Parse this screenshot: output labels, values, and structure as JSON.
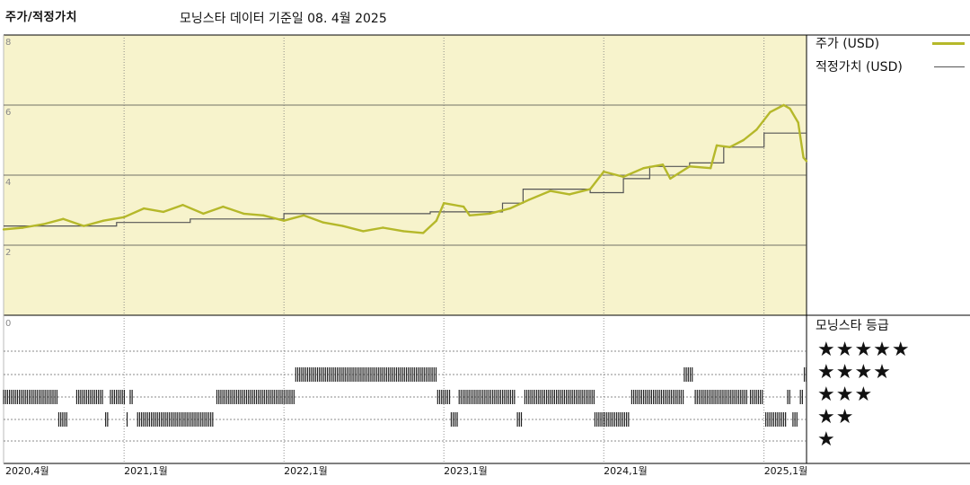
{
  "header": {
    "title": "주가/적정가치",
    "subtitle": "모닝스타 데이터 기준일 08. 4월 2025"
  },
  "legend": [
    {
      "label": "주가 (USD)",
      "color": "#b5b82a"
    },
    {
      "label": "적정가치 (USD)",
      "color": "#555555"
    }
  ],
  "rating_panel": {
    "title": "모닝스타 등급",
    "stars": [
      "★★★★★",
      "★★★★",
      "★★★",
      "★★",
      "★"
    ]
  },
  "colors": {
    "plot_bg": "#f7f3cc",
    "price": "#b5b82a",
    "fair_value": "#555555",
    "rating_bar": "#222222"
  },
  "chart_data": {
    "type": "line",
    "title": "주가/적정가치",
    "subtitle": "모닝스타 데이터 기준일 08. 4월 2025",
    "x_ticks": [
      {
        "label": "2020,4월",
        "date": "2020-04-01"
      },
      {
        "label": "2021,1월",
        "date": "2021-01-01"
      },
      {
        "label": "2022,1월",
        "date": "2022-01-01"
      },
      {
        "label": "2023,1월",
        "date": "2023-01-01"
      },
      {
        "label": "2024,1월",
        "date": "2024-01-01"
      },
      {
        "label": "2025,1월",
        "date": "2025-01-01"
      }
    ],
    "xlim": [
      "2020-04-01",
      "2025-04-08"
    ],
    "y_ticks": [
      2,
      4,
      6,
      8
    ],
    "ylim": [
      0,
      8
    ],
    "grid": true,
    "series": [
      {
        "name": "주가 (USD)",
        "points": [
          [
            "2020-04-01",
            2.45
          ],
          [
            "2020-05-15",
            2.5
          ],
          [
            "2020-07-01",
            2.6
          ],
          [
            "2020-08-15",
            2.75
          ],
          [
            "2020-10-01",
            2.55
          ],
          [
            "2020-11-15",
            2.7
          ],
          [
            "2021-01-01",
            2.8
          ],
          [
            "2021-02-15",
            3.05
          ],
          [
            "2021-04-01",
            2.95
          ],
          [
            "2021-05-15",
            3.15
          ],
          [
            "2021-07-01",
            2.9
          ],
          [
            "2021-08-15",
            3.1
          ],
          [
            "2021-10-01",
            2.9
          ],
          [
            "2021-11-15",
            2.85
          ],
          [
            "2022-01-01",
            2.7
          ],
          [
            "2022-02-15",
            2.85
          ],
          [
            "2022-04-01",
            2.65
          ],
          [
            "2022-05-15",
            2.55
          ],
          [
            "2022-07-01",
            2.4
          ],
          [
            "2022-08-15",
            2.5
          ],
          [
            "2022-10-01",
            2.4
          ],
          [
            "2022-11-15",
            2.35
          ],
          [
            "2022-12-15",
            2.7
          ],
          [
            "2023-01-01",
            3.2
          ],
          [
            "2023-02-15",
            3.1
          ],
          [
            "2023-03-01",
            2.85
          ],
          [
            "2023-04-15",
            2.9
          ],
          [
            "2023-06-01",
            3.05
          ],
          [
            "2023-07-15",
            3.3
          ],
          [
            "2023-09-01",
            3.55
          ],
          [
            "2023-10-15",
            3.45
          ],
          [
            "2023-12-01",
            3.6
          ],
          [
            "2024-01-01",
            4.1
          ],
          [
            "2024-02-15",
            3.95
          ],
          [
            "2024-04-01",
            4.2
          ],
          [
            "2024-05-15",
            4.3
          ],
          [
            "2024-06-01",
            3.9
          ],
          [
            "2024-07-15",
            4.25
          ],
          [
            "2024-09-01",
            4.2
          ],
          [
            "2024-09-15",
            4.85
          ],
          [
            "2024-10-15",
            4.8
          ],
          [
            "2024-11-15",
            5.0
          ],
          [
            "2024-12-15",
            5.3
          ],
          [
            "2025-01-15",
            5.8
          ],
          [
            "2025-02-15",
            6.0
          ],
          [
            "2025-03-01",
            5.9
          ],
          [
            "2025-03-20",
            5.5
          ],
          [
            "2025-04-01",
            4.5
          ],
          [
            "2025-04-08",
            4.4
          ]
        ]
      },
      {
        "name": "적정가치 (USD)",
        "points": [
          [
            "2020-04-01",
            2.55
          ],
          [
            "2020-12-15",
            2.55
          ],
          [
            "2020-12-15",
            2.65
          ],
          [
            "2021-06-01",
            2.65
          ],
          [
            "2021-06-01",
            2.75
          ],
          [
            "2022-01-01",
            2.75
          ],
          [
            "2022-01-01",
            2.9
          ],
          [
            "2022-12-01",
            2.9
          ],
          [
            "2022-12-01",
            2.95
          ],
          [
            "2023-05-15",
            2.95
          ],
          [
            "2023-05-15",
            3.2
          ],
          [
            "2023-07-01",
            3.2
          ],
          [
            "2023-07-01",
            3.6
          ],
          [
            "2023-12-01",
            3.6
          ],
          [
            "2023-12-01",
            3.5
          ],
          [
            "2024-02-15",
            3.5
          ],
          [
            "2024-02-15",
            3.9
          ],
          [
            "2024-04-15",
            3.9
          ],
          [
            "2024-04-15",
            4.25
          ],
          [
            "2024-07-15",
            4.25
          ],
          [
            "2024-07-15",
            4.35
          ],
          [
            "2024-10-01",
            4.35
          ],
          [
            "2024-10-01",
            4.8
          ],
          [
            "2025-01-01",
            4.8
          ],
          [
            "2025-01-01",
            5.2
          ],
          [
            "2025-04-08",
            5.2
          ]
        ]
      }
    ],
    "rating_history": {
      "label": "모닝스타 등급",
      "levels": [
        5,
        4,
        3,
        2,
        1
      ],
      "segments": [
        {
          "stars": 3,
          "start": "2020-04-01",
          "end": "2020-08-01"
        },
        {
          "stars": 2,
          "start": "2020-08-05",
          "end": "2020-08-25"
        },
        {
          "stars": 3,
          "start": "2020-09-15",
          "end": "2020-11-15"
        },
        {
          "stars": 2,
          "start": "2020-11-20",
          "end": "2020-11-28"
        },
        {
          "stars": 3,
          "start": "2020-12-01",
          "end": "2021-01-05"
        },
        {
          "stars": 2,
          "start": "2021-01-08",
          "end": "2021-01-12"
        },
        {
          "stars": 3,
          "start": "2021-01-15",
          "end": "2021-01-20"
        },
        {
          "stars": 2,
          "start": "2021-02-01",
          "end": "2021-07-25"
        },
        {
          "stars": 3,
          "start": "2021-08-01",
          "end": "2022-01-25"
        },
        {
          "stars": 4,
          "start": "2022-01-28",
          "end": "2022-12-15"
        },
        {
          "stars": 3,
          "start": "2022-12-18",
          "end": "2023-01-15"
        },
        {
          "stars": 2,
          "start": "2023-01-18",
          "end": "2023-02-01"
        },
        {
          "stars": 3,
          "start": "2023-02-05",
          "end": "2023-06-15"
        },
        {
          "stars": 2,
          "start": "2023-06-18",
          "end": "2023-07-01"
        },
        {
          "stars": 3,
          "start": "2023-07-05",
          "end": "2023-12-10"
        },
        {
          "stars": 2,
          "start": "2023-12-12",
          "end": "2024-03-01"
        },
        {
          "stars": 3,
          "start": "2024-03-05",
          "end": "2024-07-01"
        },
        {
          "stars": 4,
          "start": "2024-07-03",
          "end": "2024-07-25"
        },
        {
          "stars": 3,
          "start": "2024-07-28",
          "end": "2024-11-25"
        },
        {
          "stars": 3,
          "start": "2024-12-01",
          "end": "2025-01-01"
        },
        {
          "stars": 2,
          "start": "2025-01-05",
          "end": "2025-02-20"
        },
        {
          "stars": 3,
          "start": "2025-02-24",
          "end": "2025-03-05"
        },
        {
          "stars": 2,
          "start": "2025-03-08",
          "end": "2025-03-20"
        },
        {
          "stars": 3,
          "start": "2025-03-25",
          "end": "2025-04-01"
        },
        {
          "stars": 4,
          "start": "2025-04-03",
          "end": "2025-04-08"
        }
      ]
    }
  }
}
